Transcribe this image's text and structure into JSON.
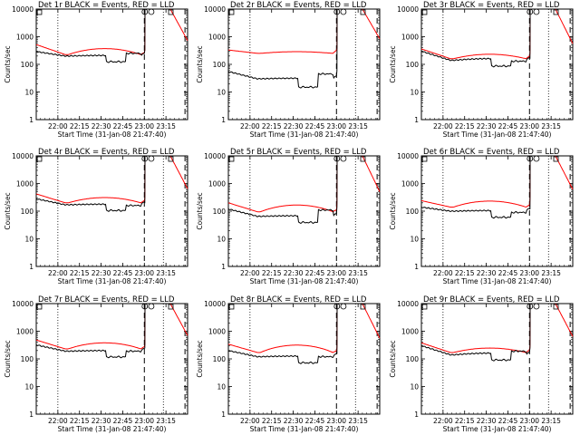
{
  "figure": {
    "rows": 3,
    "cols": 3,
    "colors": {
      "events": "#000000",
      "lld": "#ff0000",
      "background": "#ffffff"
    }
  },
  "chart_data": [
    {
      "type": "line",
      "title": "Det 1r BLACK = Events, RED = LLD",
      "xlabel": "Start Time (31-Jan-08 21:47:40)",
      "ylabel": "Counts/sec",
      "yscale": "log",
      "ylim": [
        1,
        10000
      ],
      "xtick_labels": [
        "22:00",
        "22:15",
        "22:30",
        "22:45",
        "23:00",
        "23:15"
      ],
      "ytick_labels": [
        "1",
        "10",
        "100",
        "1000",
        "10000"
      ],
      "markers": [
        "O",
        "O"
      ],
      "profile": {
        "evStart": 290,
        "evBase": 200,
        "evBump": 1.0,
        "evDip": 0.62,
        "evStep": 250,
        "ldStart": 520,
        "ldBase": 225,
        "ldBump": 1.6,
        "ldEnd": 260
      }
    },
    {
      "type": "line",
      "title": "Det 2r BLACK = Events, RED = LLD",
      "xlabel": "Start Time (31-Jan-08 21:47:40)",
      "ylabel": "Counts/sec",
      "yscale": "log",
      "ylim": [
        1,
        10000
      ],
      "xtick_labels": [
        "22:00",
        "22:15",
        "22:30",
        "22:45",
        "23:00",
        "23:15"
      ],
      "ytick_labels": [
        "1",
        "10",
        "100",
        "1000",
        "10000"
      ],
      "markers": [
        "O",
        "O"
      ],
      "profile": {
        "evStart": 55,
        "evBase": 30,
        "evBump": 1.0,
        "evDip": 0.5,
        "evStep": 45,
        "ldStart": 330,
        "ldBase": 250,
        "ldBump": 1.1,
        "ldEnd": 300
      }
    },
    {
      "type": "line",
      "title": "Det 3r BLACK = Events, RED = LLD",
      "xlabel": "Start Time (31-Jan-08 21:47:40)",
      "ylabel": "Counts/sec",
      "yscale": "log",
      "ylim": [
        1,
        10000
      ],
      "xtick_labels": [
        "22:00",
        "22:15",
        "22:30",
        "22:45",
        "23:00",
        "23:15"
      ],
      "ytick_labels": [
        "1",
        "10",
        "100",
        "1000",
        "10000"
      ],
      "markers": [
        "O",
        "O"
      ],
      "profile": {
        "evStart": 300,
        "evBase": 140,
        "evBump": 1.1,
        "evDip": 0.62,
        "evStep": 130,
        "ldStart": 360,
        "ldBase": 160,
        "ldBump": 1.4,
        "ldEnd": 200
      }
    },
    {
      "type": "line",
      "title": "Det 4r BLACK = Events, RED = LLD",
      "xlabel": "Start Time (31-Jan-08 21:47:40)",
      "ylabel": "Counts/sec",
      "yscale": "log",
      "ylim": [
        1,
        10000
      ],
      "xtick_labels": [
        "22:00",
        "22:15",
        "22:30",
        "22:45",
        "23:00",
        "23:15"
      ],
      "ytick_labels": [
        "1",
        "10",
        "100",
        "1000",
        "10000"
      ],
      "markers": [
        "O",
        "O"
      ],
      "profile": {
        "evStart": 280,
        "evBase": 170,
        "evBump": 1.0,
        "evDip": 0.62,
        "evStep": 160,
        "ldStart": 420,
        "ldBase": 200,
        "ldBump": 1.5,
        "ldEnd": 230
      }
    },
    {
      "type": "line",
      "title": "Det 5r BLACK = Events, RED = LLD",
      "xlabel": "Start Time (31-Jan-08 21:47:40)",
      "ylabel": "Counts/sec",
      "yscale": "log",
      "ylim": [
        1,
        10000
      ],
      "xtick_labels": [
        "22:00",
        "22:15",
        "22:30",
        "22:45",
        "23:00",
        "23:15"
      ],
      "ytick_labels": [
        "1",
        "10",
        "100",
        "1000",
        "10000"
      ],
      "markers": [
        "O",
        "O"
      ],
      "profile": {
        "evStart": 120,
        "evBase": 65,
        "evBump": 1.0,
        "evDip": 0.6,
        "evStep": 110,
        "ldStart": 200,
        "ldBase": 95,
        "ldBump": 1.7,
        "ldEnd": 180
      }
    },
    {
      "type": "line",
      "title": "Det 6r BLACK = Events, RED = LLD",
      "xlabel": "Start Time (31-Jan-08 21:47:40)",
      "ylabel": "Counts/sec",
      "yscale": "log",
      "ylim": [
        1,
        10000
      ],
      "xtick_labels": [
        "22:00",
        "22:15",
        "22:30",
        "22:45",
        "23:00",
        "23:15"
      ],
      "ytick_labels": [
        "1",
        "10",
        "100",
        "1000",
        "10000"
      ],
      "markers": [
        "O",
        "O"
      ],
      "profile": {
        "evStart": 140,
        "evBase": 100,
        "evBump": 1.0,
        "evDip": 0.6,
        "evStep": 90,
        "ldStart": 240,
        "ldBase": 140,
        "ldBump": 1.6,
        "ldEnd": 220
      }
    },
    {
      "type": "line",
      "title": "Det 7r BLACK = Events, RED = LLD",
      "xlabel": "Start Time (31-Jan-08 21:47:40)",
      "ylabel": "Counts/sec",
      "yscale": "log",
      "ylim": [
        1,
        10000
      ],
      "xtick_labels": [
        "22:00",
        "22:15",
        "22:30",
        "22:45",
        "23:00",
        "23:15"
      ],
      "ytick_labels": [
        "1",
        "10",
        "100",
        "1000",
        "10000"
      ],
      "markers": [
        "O",
        "O"
      ],
      "profile": {
        "evStart": 320,
        "evBase": 190,
        "evBump": 1.0,
        "evDip": 0.62,
        "evStep": 190,
        "ldStart": 480,
        "ldBase": 230,
        "ldBump": 1.6,
        "ldEnd": 250
      }
    },
    {
      "type": "line",
      "title": "Det 8r BLACK = Events, RED = LLD",
      "xlabel": "Start Time (31-Jan-08 21:47:40)",
      "ylabel": "Counts/sec",
      "yscale": "log",
      "ylim": [
        1,
        10000
      ],
      "xtick_labels": [
        "22:00",
        "22:15",
        "22:30",
        "22:45",
        "23:00",
        "23:15"
      ],
      "ytick_labels": [
        "1",
        "10",
        "100",
        "1000",
        "10000"
      ],
      "markers": [
        "O",
        "O"
      ],
      "profile": {
        "evStart": 200,
        "evBase": 120,
        "evBump": 1.0,
        "evDip": 0.6,
        "evStep": 120,
        "ldStart": 340,
        "ldBase": 170,
        "ldBump": 1.8,
        "ldEnd": 200
      }
    },
    {
      "type": "line",
      "title": "Det 9r BLACK = Events, RED = LLD",
      "xlabel": "Start Time (31-Jan-08 21:47:40)",
      "ylabel": "Counts/sec",
      "yscale": "log",
      "ylim": [
        1,
        10000
      ],
      "xtick_labels": [
        "22:00",
        "22:15",
        "22:30",
        "22:45",
        "23:00",
        "23:15"
      ],
      "ytick_labels": [
        "1",
        "10",
        "100",
        "1000",
        "10000"
      ],
      "markers": [
        "O",
        "O"
      ],
      "profile": {
        "evStart": 300,
        "evBase": 140,
        "evBump": 1.1,
        "evDip": 0.65,
        "evStep": 190,
        "ldStart": 380,
        "ldBase": 170,
        "ldBump": 1.4,
        "ldEnd": 230
      }
    }
  ]
}
